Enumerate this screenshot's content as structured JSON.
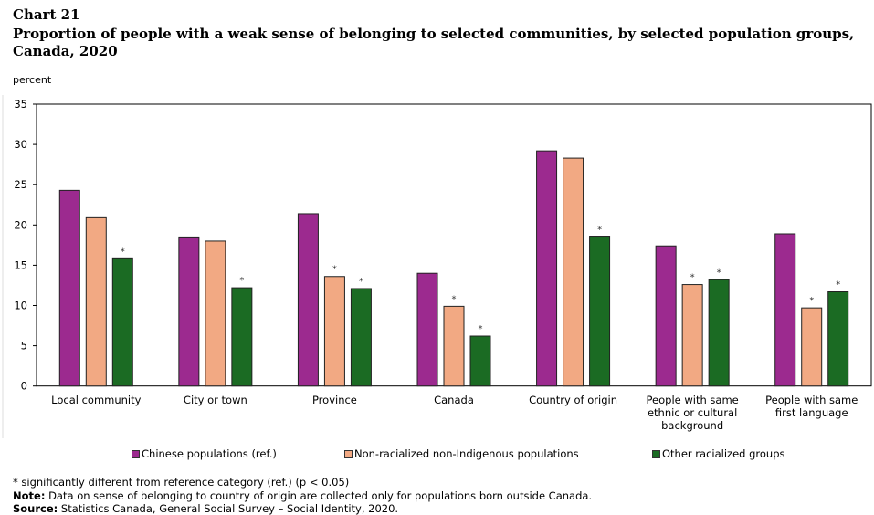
{
  "title_line1": "Chart 21",
  "title_line2": "Proportion of people with a weak sense of belonging to selected communities, by selected population groups, Canada, 2020",
  "footnotes": {
    "sig": "* significantly different from reference category (ref.) (p < 0.05)",
    "note_label": "Note:",
    "note": " Data on sense of belonging to country of origin are collected only for populations born outside Canada.",
    "source_label": "Source:",
    "source": " Statistics Canada, General Social Survey – Social Identity, 2020."
  },
  "chart_data": {
    "type": "bar",
    "ylabel": "percent",
    "ylim": [
      0,
      35
    ],
    "yticks": [
      0,
      5,
      10,
      15,
      20,
      25,
      30,
      35
    ],
    "categories": [
      "Local community",
      "City or town",
      "Province",
      "Canada",
      "Country of origin",
      "People with same ethnic or cultural background",
      "People with same first language"
    ],
    "category_lines": [
      [
        "Local community"
      ],
      [
        "City or town"
      ],
      [
        "Province"
      ],
      [
        "Canada"
      ],
      [
        "Country of origin"
      ],
      [
        "People with same",
        "ethnic or cultural",
        "background"
      ],
      [
        "People with same",
        "first language"
      ]
    ],
    "legend_position": "bottom",
    "series": [
      {
        "name": "Chinese populations (ref.)",
        "color": "#9c2a8f",
        "values": [
          24.3,
          18.4,
          21.4,
          14.0,
          29.2,
          17.4,
          18.9
        ],
        "significant": [
          false,
          false,
          false,
          false,
          false,
          false,
          false
        ]
      },
      {
        "name": "Non-racialized non-Indigenous populations",
        "color": "#f2a983",
        "values": [
          20.9,
          18.0,
          13.6,
          9.9,
          28.3,
          12.6,
          9.7
        ],
        "significant": [
          false,
          false,
          true,
          true,
          false,
          true,
          true
        ]
      },
      {
        "name": "Other racialized groups",
        "color": "#1b6b23",
        "values": [
          15.8,
          12.2,
          12.1,
          6.2,
          18.5,
          13.2,
          11.7
        ],
        "significant": [
          true,
          true,
          true,
          true,
          true,
          true,
          true
        ]
      }
    ],
    "significance_marker": "*"
  }
}
